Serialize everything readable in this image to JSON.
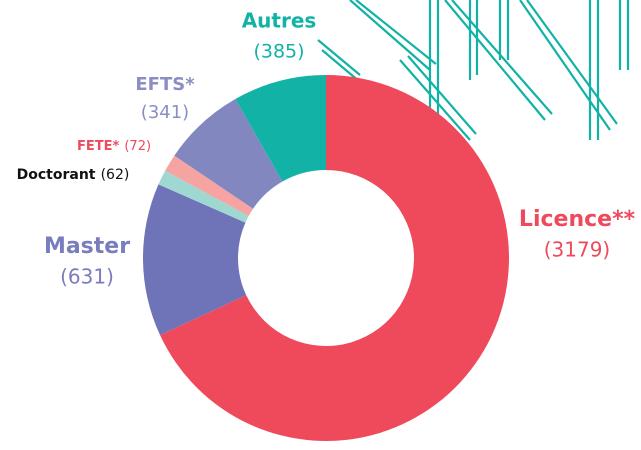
{
  "chart_data": {
    "type": "donut",
    "categories": [
      "Licence**",
      "Master",
      "Doctorant",
      "FETE*",
      "EFTS*",
      "Autres"
    ],
    "values": [
      3179,
      631,
      62,
      72,
      341,
      385
    ],
    "value_labels": [
      "(3179)",
      "(631)",
      "(62)",
      "(72)",
      "(341)",
      "(385)"
    ],
    "colors": [
      "#ef4a5c",
      "#6f73b7",
      "#9fd8d1",
      "#f5a4a2",
      "#8387c0",
      "#12b3a6"
    ],
    "label_colors": [
      "#ef4a5c",
      "#7a7dbd",
      "#111111",
      "#ef4a5c",
      "#8b8ec3",
      "#12b3a6"
    ]
  }
}
